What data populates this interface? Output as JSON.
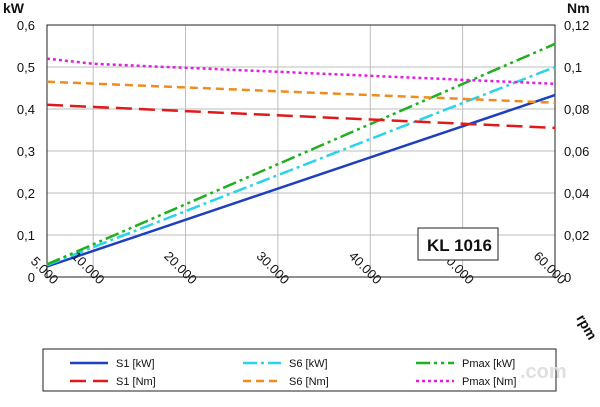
{
  "chart_data": {
    "type": "line",
    "badge": "KL 1016",
    "xlabel": "rpm",
    "ylabel_left": "kW",
    "ylabel_right": "Nm",
    "xlim": [
      5000,
      60000
    ],
    "ylim_left": [
      0,
      0.6
    ],
    "ylim_right": [
      0,
      0.12
    ],
    "x_ticks": [
      "5.000",
      "10.000",
      "20.000",
      "30.000",
      "40.000",
      "50.000",
      "60.000"
    ],
    "y_left_ticks": [
      "0",
      "0,1",
      "0,2",
      "0,3",
      "0,4",
      "0,5",
      "0,6"
    ],
    "y_right_ticks": [
      "0",
      "0,02",
      "0,04",
      "0,06",
      "0,08",
      "0,1",
      "0,12"
    ],
    "grid": true,
    "legend_position": "bottom",
    "series": [
      {
        "name": "S1 [kW]",
        "axis": "left",
        "color": "#1f3fbf",
        "dash": "solid",
        "x": [
          5000,
          60000
        ],
        "y": [
          0.025,
          0.433
        ]
      },
      {
        "name": "S6 [kW]",
        "axis": "left",
        "color": "#29d3ea",
        "dash": "dashdot",
        "x": [
          5000,
          60000
        ],
        "y": [
          0.028,
          0.5
        ]
      },
      {
        "name": "Pmax [kW]",
        "axis": "left",
        "color": "#1fb01f",
        "dash": "dashdotdot",
        "x": [
          5000,
          60000
        ],
        "y": [
          0.03,
          0.555
        ]
      },
      {
        "name": "S1 [Nm]",
        "axis": "right",
        "color": "#e01a1a",
        "dash": "longdash",
        "x": [
          5000,
          60000
        ],
        "y": [
          0.082,
          0.071
        ]
      },
      {
        "name": "S6 [Nm]",
        "axis": "right",
        "color": "#f08c1e",
        "dash": "dash",
        "x": [
          5000,
          60000
        ],
        "y": [
          0.093,
          0.083
        ]
      },
      {
        "name": "Pmax [Nm]",
        "axis": "right",
        "color": "#e020e0",
        "dash": "dot",
        "x": [
          5000,
          10000,
          60000
        ],
        "y": [
          0.104,
          0.1015,
          0.092
        ]
      }
    ]
  }
}
